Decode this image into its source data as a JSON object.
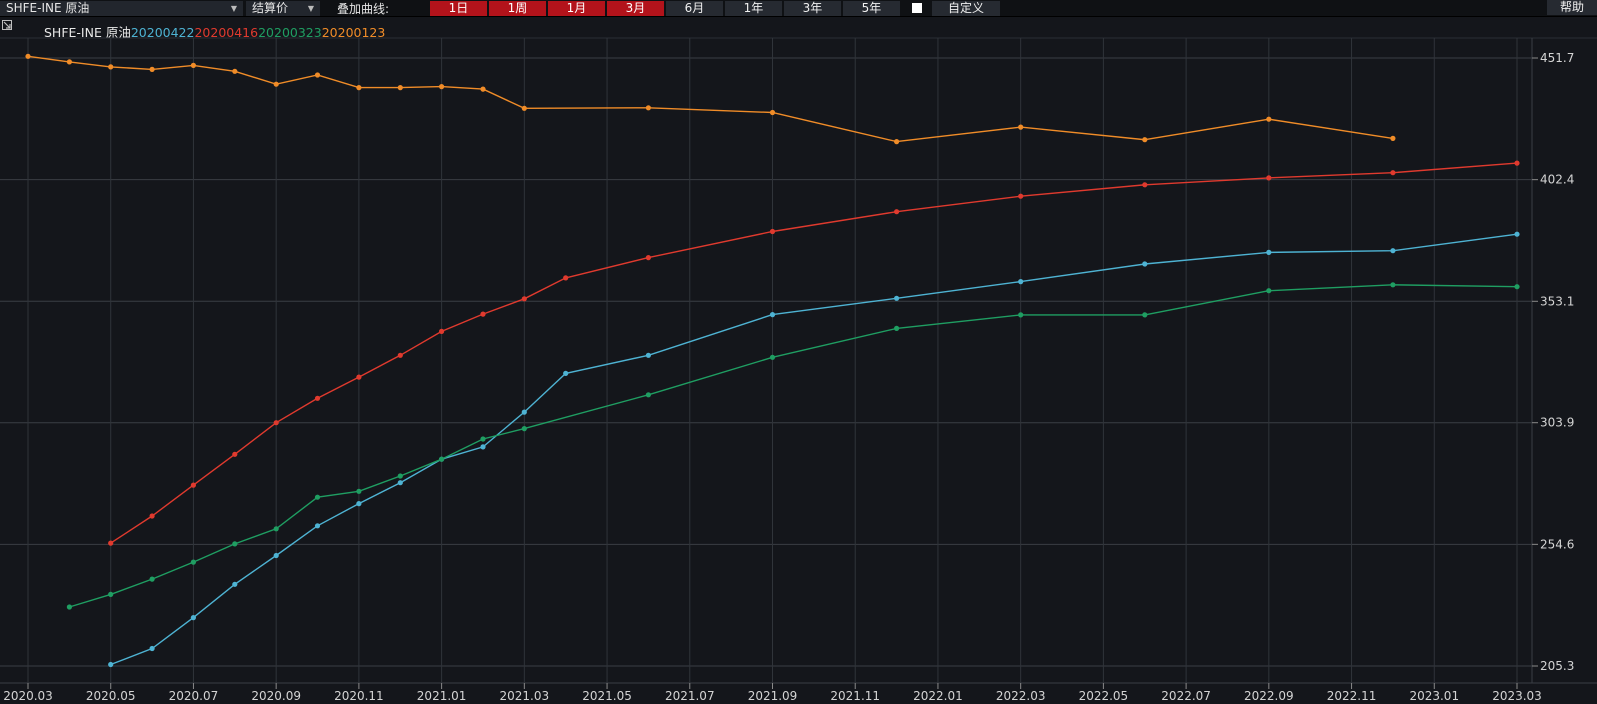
{
  "toolbar": {
    "contract_select": "SHFE-INE 原油",
    "price_type_select": "结算价",
    "overlay_label": "叠加曲线:",
    "periods": [
      {
        "label": "1日",
        "active": true
      },
      {
        "label": "1周",
        "active": true
      },
      {
        "label": "1月",
        "active": true
      },
      {
        "label": "3月",
        "active": true
      },
      {
        "label": "6月",
        "active": false
      },
      {
        "label": "1年",
        "active": false
      },
      {
        "label": "3年",
        "active": false
      },
      {
        "label": "5年",
        "active": false
      }
    ],
    "custom_label": "自定义",
    "help_label": "帮助"
  },
  "chart_data": {
    "type": "line",
    "legend_prefix": "SHFE-INE 原油",
    "x_categories": [
      "2020.03",
      "2020.04",
      "2020.05",
      "2020.06",
      "2020.07",
      "2020.08",
      "2020.09",
      "2020.10",
      "2020.11",
      "2020.12",
      "2021.01",
      "2021.02",
      "2021.03",
      "2021.04",
      "2021.05",
      "2021.06",
      "2021.07",
      "2021.08",
      "2021.09",
      "2021.10",
      "2021.11",
      "2021.12",
      "2022.01",
      "2022.02",
      "2022.03",
      "2022.04",
      "2022.05",
      "2022.06",
      "2022.07",
      "2022.08",
      "2022.09",
      "2022.10",
      "2022.11",
      "2022.12",
      "2023.01",
      "2023.02",
      "2023.03"
    ],
    "x_tick_labels": [
      "2020.03",
      "2020.05",
      "2020.07",
      "2020.09",
      "2020.11",
      "2021.01",
      "2021.03",
      "2021.05",
      "2021.07",
      "2021.09",
      "2021.11",
      "2022.01",
      "2022.03",
      "2022.05",
      "2022.07",
      "2022.09",
      "2022.11",
      "2023.01",
      "2023.03"
    ],
    "y_ticks": [
      "451.7",
      "402.4",
      "353.1",
      "303.9",
      "254.6",
      "205.3"
    ],
    "ylim": [
      205.3,
      451.7
    ],
    "series": [
      {
        "name": "20200422",
        "color": "#4eb3d3",
        "points": [
          [
            "2020.05",
            205.9
          ],
          [
            "2020.06",
            212.4
          ],
          [
            "2020.07",
            224.9
          ],
          [
            "2020.08",
            238.4
          ],
          [
            "2020.09",
            250.1
          ],
          [
            "2020.10",
            262.1
          ],
          [
            "2020.11",
            271.1
          ],
          [
            "2020.12",
            279.6
          ],
          [
            "2021.01",
            289.1
          ],
          [
            "2021.02",
            294.1
          ],
          [
            "2021.03",
            308.2
          ],
          [
            "2021.04",
            323.9
          ],
          [
            "2021.06",
            331.2
          ],
          [
            "2021.09",
            347.7
          ],
          [
            "2021.12",
            354.3
          ],
          [
            "2022.03",
            361.1
          ],
          [
            "2022.06",
            368.2
          ],
          [
            "2022.09",
            372.9
          ],
          [
            "2022.12",
            373.6
          ],
          [
            "2023.03",
            380.3
          ]
        ]
      },
      {
        "name": "20200416",
        "color": "#e03a2e",
        "points": [
          [
            "2020.05",
            255.1
          ],
          [
            "2020.06",
            266.1
          ],
          [
            "2020.07",
            278.6
          ],
          [
            "2020.08",
            291.1
          ],
          [
            "2020.09",
            303.9
          ],
          [
            "2020.10",
            313.8
          ],
          [
            "2020.11",
            322.4
          ],
          [
            "2020.12",
            331.2
          ],
          [
            "2021.01",
            340.9
          ],
          [
            "2021.02",
            347.9
          ],
          [
            "2021.03",
            354.1
          ],
          [
            "2021.04",
            362.6
          ],
          [
            "2021.06",
            370.8
          ],
          [
            "2021.09",
            381.4
          ],
          [
            "2021.12",
            389.4
          ],
          [
            "2022.03",
            395.7
          ],
          [
            "2022.06",
            400.3
          ],
          [
            "2022.09",
            403.1
          ],
          [
            "2022.12",
            405.2
          ],
          [
            "2023.03",
            409.1
          ]
        ]
      },
      {
        "name": "20200323",
        "color": "#1f9e62",
        "points": [
          [
            "2020.04",
            229.2
          ],
          [
            "2020.05",
            234.3
          ],
          [
            "2020.06",
            240.5
          ],
          [
            "2020.07",
            247.4
          ],
          [
            "2020.08",
            254.8
          ],
          [
            "2020.09",
            260.9
          ],
          [
            "2020.10",
            273.7
          ],
          [
            "2020.11",
            276.1
          ],
          [
            "2020.12",
            282.3
          ],
          [
            "2021.01",
            289.1
          ],
          [
            "2021.02",
            297.3
          ],
          [
            "2021.03",
            301.5
          ],
          [
            "2021.06",
            315.2
          ],
          [
            "2021.09",
            330.4
          ],
          [
            "2021.12",
            342.1
          ],
          [
            "2022.03",
            347.6
          ],
          [
            "2022.06",
            347.6
          ],
          [
            "2022.09",
            357.4
          ],
          [
            "2022.12",
            359.8
          ],
          [
            "2023.03",
            359.0
          ]
        ]
      },
      {
        "name": "20200123",
        "color": "#f08c28",
        "points": [
          [
            "2020.03",
            452.4
          ],
          [
            "2020.04",
            450.1
          ],
          [
            "2020.05",
            448.1
          ],
          [
            "2020.06",
            447.1
          ],
          [
            "2020.07",
            448.7
          ],
          [
            "2020.08",
            446.3
          ],
          [
            "2020.09",
            441.1
          ],
          [
            "2020.10",
            444.8
          ],
          [
            "2020.11",
            439.7
          ],
          [
            "2020.12",
            439.7
          ],
          [
            "2021.01",
            440.1
          ],
          [
            "2021.02",
            439.1
          ],
          [
            "2021.03",
            431.3
          ],
          [
            "2021.06",
            431.5
          ],
          [
            "2021.09",
            429.6
          ],
          [
            "2021.12",
            417.8
          ],
          [
            "2022.03",
            423.7
          ],
          [
            "2022.06",
            418.6
          ],
          [
            "2022.09",
            426.9
          ],
          [
            "2022.12",
            419.1
          ]
        ]
      }
    ],
    "grid": true,
    "y_axis_position": "right"
  }
}
